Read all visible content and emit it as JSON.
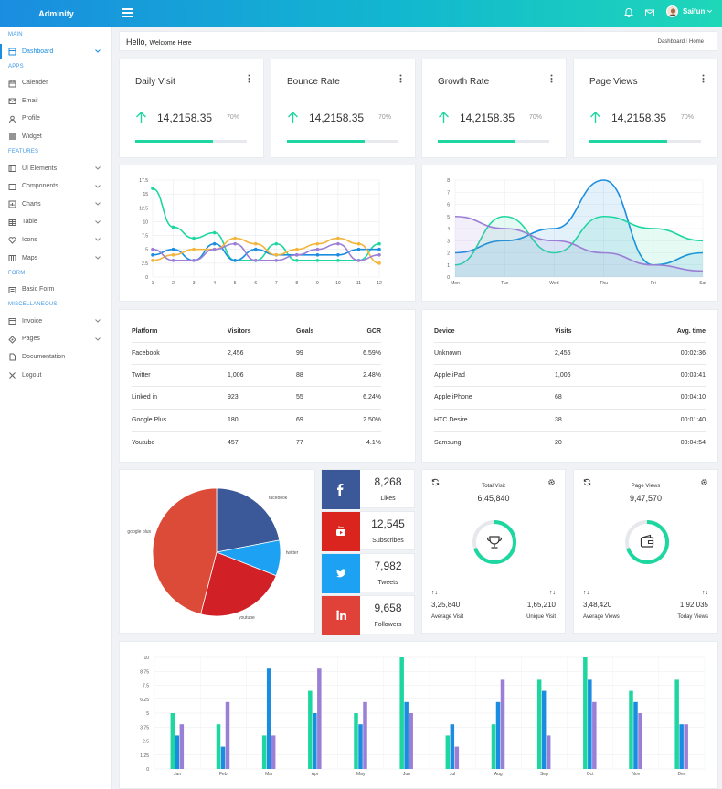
{
  "brand": "Adminity",
  "topbar": {
    "user_name": "Saifun",
    "icons": [
      "bell-icon",
      "mail-icon",
      "avatar"
    ]
  },
  "sidebar": {
    "sections": [
      {
        "label": "MAIN",
        "items": [
          {
            "label": "Dashboard",
            "icon": "dashboard-icon",
            "chevron": true,
            "active": true
          }
        ]
      },
      {
        "label": "APPS",
        "items": [
          {
            "label": "Calender",
            "icon": "calendar-icon"
          },
          {
            "label": "Email",
            "icon": "email-icon"
          },
          {
            "label": "Profile",
            "icon": "user-icon"
          },
          {
            "label": "Widget",
            "icon": "widget-icon"
          }
        ]
      },
      {
        "label": "FEATURES",
        "items": [
          {
            "label": "UI Elements",
            "icon": "layers-icon",
            "chevron": true
          },
          {
            "label": "Components",
            "icon": "components-icon",
            "chevron": true
          },
          {
            "label": "Charts",
            "icon": "chart-icon",
            "chevron": true
          },
          {
            "label": "Table",
            "icon": "table-icon",
            "chevron": true
          },
          {
            "label": "Icons",
            "icon": "heart-icon",
            "chevron": true
          },
          {
            "label": "Maps",
            "icon": "map-icon",
            "chevron": true
          }
        ]
      },
      {
        "label": "FORM",
        "items": [
          {
            "label": "Basic Form",
            "icon": "form-icon"
          }
        ]
      },
      {
        "label": "MISCELLANEOUS",
        "items": [
          {
            "label": "Invoice",
            "icon": "invoice-icon",
            "chevron": true
          },
          {
            "label": "Pages",
            "icon": "pages-icon",
            "chevron": true
          },
          {
            "label": "Documentation",
            "icon": "document-icon"
          },
          {
            "label": "Logout",
            "icon": "close-icon"
          }
        ]
      }
    ]
  },
  "header": {
    "hello": "Hello,",
    "welcome": "Welcome Here",
    "breadcrumb": [
      "Dashboard",
      "Home"
    ],
    "breadcrumb_sep": "/"
  },
  "stats": [
    {
      "title": "Daily Visit",
      "value": "14,2158.35",
      "percent": "70%",
      "progress": 0.7
    },
    {
      "title": "Bounce Rate",
      "value": "14,2158.35",
      "percent": "70%",
      "progress": 0.7
    },
    {
      "title": "Growth Rate",
      "value": "14,2158.35",
      "percent": "70%",
      "progress": 0.7
    },
    {
      "title": "Page Views",
      "value": "14,2158.35",
      "percent": "70%",
      "progress": 0.7
    }
  ],
  "platform_table": {
    "headers": [
      "Platform",
      "Visitors",
      "Goals",
      "GCR"
    ],
    "rows": [
      [
        "Facebook",
        "2,456",
        "99",
        "6.59%"
      ],
      [
        "Twitter",
        "1,006",
        "88",
        "2.48%"
      ],
      [
        "Linked in",
        "923",
        "55",
        "6.24%"
      ],
      [
        "Google Plus",
        "180",
        "69",
        "2.50%"
      ],
      [
        "Youtube",
        "457",
        "77",
        "4.1%"
      ]
    ]
  },
  "device_table": {
    "headers": [
      "Device",
      "Visits",
      "Avg. time"
    ],
    "rows": [
      [
        "Unknown",
        "2,456",
        "00:02:36"
      ],
      [
        "Apple iPad",
        "1,006",
        "00:03:41"
      ],
      [
        "Apple iPhone",
        "68",
        "00:04:10"
      ],
      [
        "HTC Desire",
        "38",
        "00:01:40"
      ],
      [
        "Samsung",
        "20",
        "00:04:54"
      ]
    ]
  },
  "social": [
    {
      "network": "facebook",
      "icon": "facebook-icon",
      "count": "8,268",
      "label": "Likes",
      "color": "#3b5998"
    },
    {
      "network": "youtube",
      "icon": "youtube-icon",
      "count": "12,545",
      "label": "Subscribes",
      "color": "#d9251d"
    },
    {
      "network": "twitter",
      "icon": "twitter-icon",
      "count": "7,982",
      "label": "Tweets",
      "color": "#1da1f2"
    },
    {
      "network": "linkedin",
      "icon": "linkedin-icon",
      "count": "9,658",
      "label": "Followers",
      "color": "#e0423a"
    }
  ],
  "visit_card": {
    "title": "Total Visit",
    "total": "6,45,840",
    "icon": "trophy-icon",
    "left_value": "3,25,840",
    "left_label": "Average Visit",
    "right_value": "1,65,210",
    "right_label": "Unique Visit",
    "ring_progress": 0.7
  },
  "views_card": {
    "title": "Page Views",
    "total": "9,47,570",
    "icon": "wallet-icon",
    "left_value": "3,48,420",
    "left_label": "Average Views",
    "right_value": "1,92,035",
    "right_label": "Today Views",
    "ring_progress": 0.7
  },
  "colors": {
    "teal": "#1ed7a0",
    "blue": "#1a8de0",
    "purple": "#9b7fd6",
    "orange": "#f5b43a",
    "accent": "#12b7cf"
  },
  "chart_data": [
    {
      "type": "line",
      "x": [
        1,
        2,
        3,
        4,
        5,
        6,
        7,
        8,
        9,
        10,
        11,
        12
      ],
      "ylim": [
        0,
        17.5
      ],
      "yticks": [
        "0",
        "2.5",
        "5",
        "7.5",
        "10",
        "12.5",
        "15",
        "17.5"
      ],
      "series": [
        {
          "color": "#1ed7a0",
          "values": [
            16,
            9,
            7,
            8,
            3,
            3,
            6,
            3,
            3,
            3,
            3,
            6
          ]
        },
        {
          "color": "#1a8de0",
          "values": [
            4,
            5,
            3,
            6,
            3,
            5,
            4,
            4,
            4,
            4,
            5,
            5
          ]
        },
        {
          "color": "#f5b43a",
          "values": [
            3,
            4,
            5,
            5,
            7,
            6,
            4,
            5,
            6,
            7,
            6,
            2.5
          ]
        },
        {
          "color": "#9b7fd6",
          "values": [
            5,
            3,
            3,
            5,
            6,
            3,
            3,
            4,
            5,
            6,
            3,
            4
          ]
        }
      ]
    },
    {
      "type": "area",
      "categories": [
        "Mon",
        "Tue",
        "Wed",
        "Thu",
        "Fri",
        "Sat"
      ],
      "ylim": [
        0,
        8
      ],
      "yticks": [
        "0",
        "1",
        "2",
        "3",
        "4",
        "5",
        "6",
        "7",
        "8"
      ],
      "series": [
        {
          "color": "#1a8de0",
          "values": [
            2,
            3,
            4,
            8,
            1,
            2
          ]
        },
        {
          "color": "#1ed7a0",
          "values": [
            1,
            5,
            2,
            5,
            4,
            3
          ]
        },
        {
          "color": "#9b7fd6",
          "values": [
            5,
            4,
            3,
            2,
            1,
            0.5
          ]
        }
      ]
    },
    {
      "type": "pie",
      "labels": [
        "facebook",
        "twitter",
        "youtube",
        "google plus"
      ],
      "values": [
        22,
        9,
        23,
        46
      ],
      "colors": [
        "#3b5998",
        "#1da1f2",
        "#d12026",
        "#dc4a38"
      ]
    },
    {
      "type": "bar",
      "categories": [
        "Jan",
        "Feb",
        "Mar",
        "Apr",
        "May",
        "Jun",
        "Jul",
        "Aug",
        "Sep",
        "Oct",
        "Nov",
        "Dec"
      ],
      "ylim": [
        0,
        10
      ],
      "yticks": [
        "0",
        "1.25",
        "2.5",
        "3.75",
        "5",
        "6.25",
        "7.5",
        "8.75",
        "10"
      ],
      "series": [
        {
          "color": "#1ed7a0",
          "values": [
            5,
            4,
            3,
            7,
            5,
            10,
            3,
            4,
            8,
            10,
            7,
            8
          ]
        },
        {
          "color": "#1a8de0",
          "values": [
            3,
            2,
            9,
            5,
            4,
            6,
            4,
            6,
            7,
            8,
            6,
            4
          ]
        },
        {
          "color": "#9b7fd6",
          "values": [
            4,
            6,
            3,
            9,
            6,
            5,
            2,
            8,
            3,
            6,
            5,
            4
          ]
        }
      ]
    }
  ]
}
